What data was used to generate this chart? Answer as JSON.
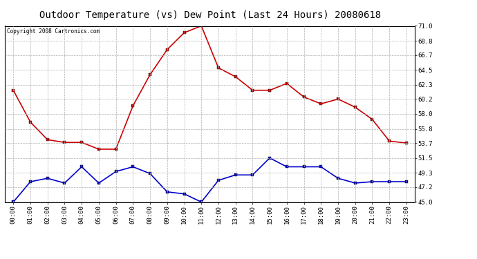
{
  "title": "Outdoor Temperature (vs) Dew Point (Last 24 Hours) 20080618",
  "copyright": "Copyright 2008 Cartronics.com",
  "hours": [
    "00:00",
    "01:00",
    "02:00",
    "03:00",
    "04:00",
    "05:00",
    "06:00",
    "07:00",
    "08:00",
    "09:00",
    "10:00",
    "11:00",
    "12:00",
    "13:00",
    "14:00",
    "15:00",
    "16:00",
    "17:00",
    "18:00",
    "19:00",
    "20:00",
    "21:00",
    "22:00",
    "23:00"
  ],
  "temp": [
    61.5,
    56.8,
    54.2,
    53.8,
    53.8,
    52.8,
    52.8,
    59.2,
    63.8,
    67.5,
    70.0,
    71.0,
    64.8,
    63.5,
    61.5,
    61.5,
    62.5,
    60.5,
    59.5,
    60.2,
    59.0,
    57.2,
    54.0,
    53.7
  ],
  "dew": [
    45.0,
    48.0,
    48.5,
    47.8,
    50.2,
    47.8,
    49.5,
    50.2,
    49.2,
    46.5,
    46.2,
    45.0,
    48.2,
    49.0,
    49.0,
    51.5,
    50.2,
    50.2,
    50.2,
    48.5,
    47.8,
    48.0,
    48.0,
    48.0
  ],
  "temp_color": "#cc0000",
  "dew_color": "#0000cc",
  "bg_color": "#ffffff",
  "plot_bg_color": "#ffffff",
  "grid_color": "#b0b0b0",
  "ylim_min": 45.0,
  "ylim_max": 71.0,
  "yticks": [
    45.0,
    47.2,
    49.3,
    51.5,
    53.7,
    55.8,
    58.0,
    60.2,
    62.3,
    64.5,
    66.7,
    68.8,
    71.0
  ],
  "marker": "s",
  "marker_size": 2.5,
  "linewidth": 1.2,
  "title_fontsize": 10,
  "tick_fontsize": 6.5,
  "copyright_fontsize": 5.5
}
